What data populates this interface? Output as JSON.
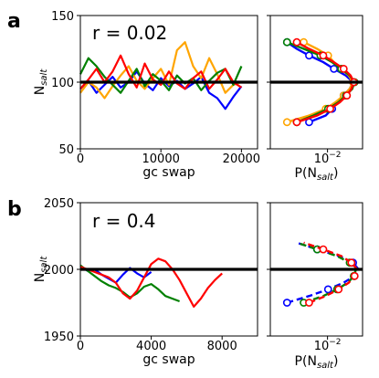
{
  "chart_data": [
    {
      "panel_label": "a",
      "type": "line",
      "annotation": "r = 0.02",
      "xlabel": "gc swap",
      "ylabel": "N",
      "ylabel_sub": "salt",
      "xlim": [
        0,
        22000
      ],
      "ylim": [
        50,
        150
      ],
      "xticks": [
        "0",
        "10000",
        "20000"
      ],
      "xtick_values": [
        0,
        10000,
        20000
      ],
      "yticks": [
        "50",
        "100",
        "150"
      ],
      "ytick_values": [
        50,
        100,
        150
      ],
      "reference_line": 100,
      "series": [
        {
          "color": "#0000ff",
          "x": [
            0,
            1000,
            2000,
            3000,
            4000,
            5000,
            6000,
            7000,
            8000,
            9000,
            10000,
            11000,
            12000,
            13000,
            14000,
            15000,
            16000,
            17000,
            18000,
            19000,
            20000
          ],
          "y": [
            95,
            101,
            92,
            98,
            104,
            96,
            100,
            108,
            99,
            94,
            103,
            97,
            101,
            95,
            99,
            104,
            92,
            88,
            80,
            89,
            97
          ]
        },
        {
          "color": "#ffa500",
          "x": [
            0,
            1000,
            2000,
            3000,
            4000,
            5000,
            6000,
            7000,
            8000,
            9000,
            10000,
            11000,
            12000,
            13000,
            14000,
            15000,
            16000,
            17000,
            18000,
            19000,
            20000
          ],
          "y": [
            92,
            100,
            96,
            88,
            97,
            105,
            112,
            101,
            95,
            103,
            110,
            98,
            124,
            130,
            112,
            103,
            118,
            106,
            92,
            98,
            100
          ]
        },
        {
          "color": "#008000",
          "x": [
            0,
            1000,
            2000,
            3000,
            4000,
            5000,
            6000,
            7000,
            8000,
            9000,
            10000,
            11000,
            12000,
            13000,
            14000,
            15000,
            16000,
            17000,
            18000,
            19000,
            20000
          ],
          "y": [
            106,
            118,
            112,
            104,
            98,
            92,
            101,
            110,
            97,
            106,
            101,
            94,
            105,
            99,
            103,
            94,
            101,
            107,
            110,
            98,
            112
          ]
        },
        {
          "color": "#ff0000",
          "x": [
            0,
            1000,
            2000,
            3000,
            4000,
            5000,
            6000,
            7000,
            8000,
            9000,
            10000,
            11000,
            12000,
            13000,
            14000,
            15000,
            16000,
            17000,
            18000,
            19000,
            20000
          ],
          "y": [
            95,
            102,
            110,
            100,
            108,
            120,
            106,
            96,
            114,
            102,
            98,
            108,
            99,
            95,
            103,
            108,
            95,
            102,
            110,
            100,
            96
          ]
        }
      ],
      "distribution": {
        "xlabel": "P(N",
        "xlabel_sub": "salt",
        "xlabel_end": ")",
        "xtick": "10",
        "xtick_exp": "−2",
        "series": [
          {
            "color": "#0000ff",
            "y": [
              70,
              75,
              80,
              85,
              90,
              95,
              100,
              105,
              110,
              115,
              120,
              125,
              130
            ],
            "p": [
              0.004,
              0.009,
              0.012,
              0.015,
              0.02,
              0.026,
              0.03,
              0.022,
              0.013,
              0.008,
              0.004,
              0.002,
              0.001
            ]
          },
          {
            "color": "#ffa500",
            "y": [
              70,
              75,
              80,
              85,
              90,
              95,
              100,
              105,
              110,
              115,
              120,
              125,
              130
            ],
            "p": [
              0.001,
              0.004,
              0.009,
              0.014,
              0.02,
              0.026,
              0.03,
              0.025,
              0.018,
              0.013,
              0.01,
              0.006,
              0.003
            ]
          },
          {
            "color": "#008000",
            "y": [
              70,
              75,
              80,
              85,
              90,
              95,
              100,
              105,
              110,
              115,
              120,
              125,
              130
            ],
            "p": [
              0.002,
              0.005,
              0.01,
              0.016,
              0.022,
              0.029,
              0.032,
              0.026,
              0.018,
              0.012,
              0.007,
              0.003,
              0.001
            ]
          },
          {
            "color": "#ff0000",
            "y": [
              70,
              75,
              80,
              85,
              90,
              95,
              100,
              105,
              110,
              115,
              120,
              125,
              130
            ],
            "p": [
              0.002,
              0.006,
              0.011,
              0.017,
              0.023,
              0.028,
              0.031,
              0.027,
              0.02,
              0.013,
              0.008,
              0.004,
              0.002
            ]
          }
        ]
      }
    },
    {
      "panel_label": "b",
      "type": "line",
      "annotation": "r = 0.4",
      "xlabel": "gc swap",
      "ylabel": "N",
      "ylabel_sub": "salt",
      "xlim": [
        0,
        10000
      ],
      "ylim": [
        1950,
        2050
      ],
      "xticks": [
        "0",
        "4000",
        "8000"
      ],
      "xtick_values": [
        0,
        4000,
        8000
      ],
      "yticks": [
        "1950",
        "2000",
        "2050"
      ],
      "ytick_values": [
        1950,
        2000,
        2050
      ],
      "reference_line": 2000,
      "series": [
        {
          "color": "#0000ff",
          "x": [
            0,
            400,
            800,
            1200,
            1600,
            2000,
            2400,
            2800,
            3200,
            3600,
            4000
          ],
          "y": [
            2002,
            1999,
            2000,
            1996,
            1993,
            1990,
            1996,
            2001,
            1997,
            1994,
            1998
          ]
        },
        {
          "color": "#008000",
          "x": [
            0,
            400,
            800,
            1200,
            1600,
            2000,
            2400,
            2800,
            3200,
            3600,
            4000,
            4400,
            4800,
            5200,
            5600
          ],
          "y": [
            2003,
            1999,
            1995,
            1991,
            1988,
            1986,
            1983,
            1979,
            1982,
            1987,
            1989,
            1985,
            1980,
            1978,
            1976
          ]
        },
        {
          "color": "#ff0000",
          "x": [
            0,
            400,
            800,
            1200,
            1600,
            2000,
            2400,
            2800,
            3200,
            3600,
            4000,
            4400,
            4800,
            5200,
            5600,
            6000,
            6400,
            6800,
            7200,
            7600,
            8000
          ],
          "y": [
            2002,
            2000,
            1998,
            1996,
            1994,
            1990,
            1982,
            1978,
            1984,
            1994,
            2004,
            2008,
            2006,
            2000,
            1992,
            1982,
            1972,
            1978,
            1986,
            1992,
            1997
          ]
        }
      ],
      "distribution": {
        "xlabel": "P(N",
        "xlabel_sub": "salt",
        "xlabel_end": ")",
        "xtick": "10",
        "xtick_exp": "−2",
        "series": [
          {
            "color": "#0000ff",
            "y": [
              1975,
              1980,
              1985,
              1990,
              1995,
              2000,
              2005,
              2010,
              2015,
              2020
            ],
            "p": [
              0.001,
              0.004,
              0.01,
              0.02,
              0.032,
              0.038,
              0.03,
              0.016,
              0.006,
              0.002
            ]
          },
          {
            "color": "#008000",
            "y": [
              1975,
              1980,
              1985,
              1990,
              1995,
              2000,
              2005,
              2010,
              2015,
              2020
            ],
            "p": [
              0.003,
              0.008,
              0.015,
              0.024,
              0.031,
              0.034,
              0.026,
              0.015,
              0.006,
              0.002
            ]
          },
          {
            "color": "#ff0000",
            "y": [
              1975,
              1980,
              1985,
              1990,
              1995,
              2000,
              2005,
              2010,
              2015,
              2020
            ],
            "p": [
              0.004,
              0.009,
              0.016,
              0.025,
              0.032,
              0.036,
              0.028,
              0.018,
              0.008,
              0.003
            ]
          }
        ]
      }
    }
  ]
}
